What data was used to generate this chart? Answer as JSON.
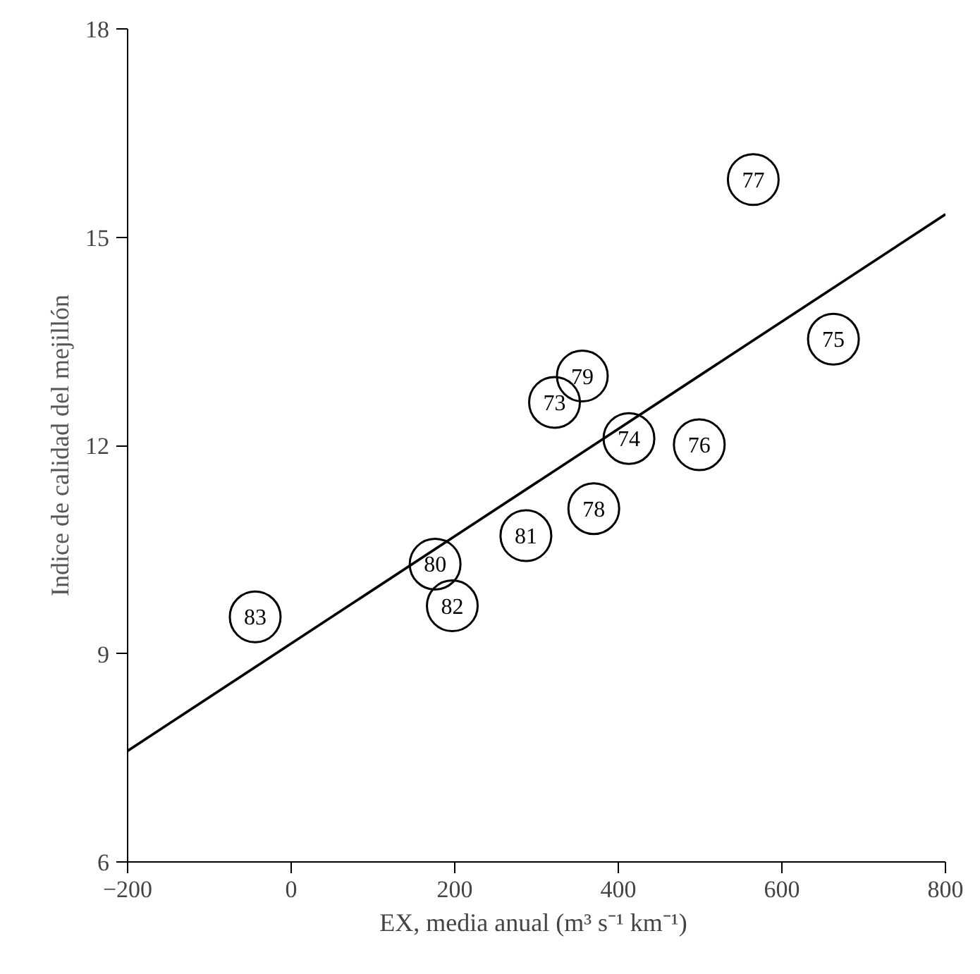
{
  "chart_data": {
    "type": "scatter",
    "xlabel": "EX, media anual  (m³ s⁻¹ km⁻¹)",
    "ylabel": "Indice de calidad del mejillón",
    "xlim": [
      -200,
      800
    ],
    "ylim": [
      6,
      18
    ],
    "xticks": [
      -200,
      0,
      200,
      400,
      600,
      800
    ],
    "yticks": [
      6,
      9,
      12,
      15,
      18
    ],
    "grid": false,
    "series": [
      {
        "marker": "circle",
        "color": "#000000",
        "x": [
          -44,
          176,
          197,
          287,
          322,
          356,
          370,
          413,
          499,
          565,
          663
        ],
        "values": [
          9.53,
          10.29,
          9.69,
          10.7,
          12.62,
          13.0,
          11.09,
          12.1,
          12.01,
          15.83,
          13.53
        ]
      },
      {
        "type": "line",
        "marker": "none",
        "color": "#000000",
        "x": [
          -200,
          800
        ],
        "values": [
          7.6,
          15.33
        ]
      }
    ],
    "annotations": [
      {
        "text": "83",
        "x": -44,
        "y": 9.53
      },
      {
        "text": "80",
        "x": 176,
        "y": 10.29
      },
      {
        "text": "82",
        "x": 197,
        "y": 9.69
      },
      {
        "text": "81",
        "x": 287,
        "y": 10.7
      },
      {
        "text": "73",
        "x": 322,
        "y": 12.62
      },
      {
        "text": "79",
        "x": 356,
        "y": 13.0
      },
      {
        "text": "78",
        "x": 370,
        "y": 11.09
      },
      {
        "text": "74",
        "x": 413,
        "y": 12.1
      },
      {
        "text": "76",
        "x": 499,
        "y": 12.01
      },
      {
        "text": "77",
        "x": 565,
        "y": 15.83
      },
      {
        "text": "75",
        "x": 663,
        "y": 13.53
      }
    ]
  }
}
